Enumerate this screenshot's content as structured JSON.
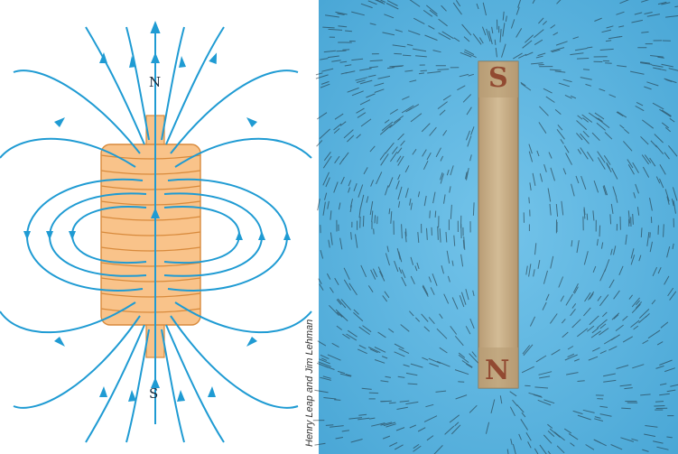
{
  "solenoid": {
    "north_label": "N",
    "south_label": "S",
    "field_line_color": "#1f9bd3",
    "coil_color": "#f9c38a",
    "coil_outline": "#d88a3c"
  },
  "photo": {
    "credit": "Henry Leap and Jim Lehman",
    "top_pole_label": "S",
    "bottom_pole_label": "N",
    "background_color": "#5fb7e2",
    "magnet_color": "#c9b08a"
  }
}
